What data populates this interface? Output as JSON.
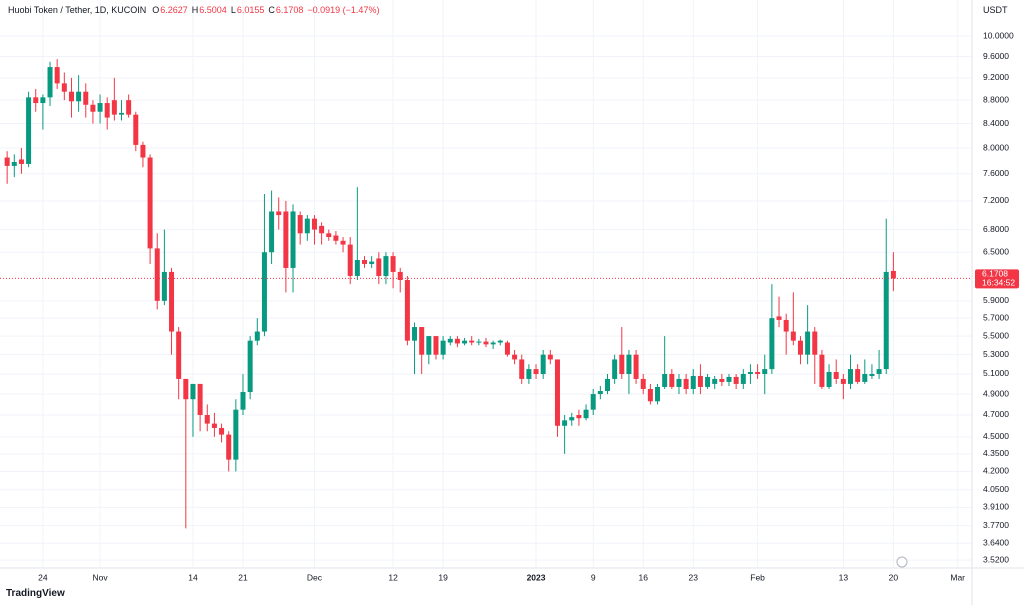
{
  "header": {
    "title": "Huobi Token / Tether, 1D, KUCOIN",
    "open_label": "O",
    "high_label": "H",
    "low_label": "L",
    "close_label": "C",
    "change": "−0.0919 (−1.47%)",
    "countdown": "16:34:52",
    "brand": "TradingView"
  },
  "chart_data": {
    "type": "candlestick",
    "y_axis_label": "USDT",
    "log_scale": true,
    "grid": true,
    "colors": {
      "up": "#089981",
      "down": "#f23645",
      "grid": "#f0f3fa"
    },
    "xlim": [
      "2022-10-18",
      "2023-03-03"
    ],
    "ylim": [
      3.465,
      10.744
    ],
    "xticks": [
      {
        "value": "2022-10-24",
        "label": "24"
      },
      {
        "value": "2022-11-01",
        "label": "Nov"
      },
      {
        "value": "2022-11-14",
        "label": "14"
      },
      {
        "value": "2022-11-21",
        "label": "21"
      },
      {
        "value": "2022-12-01",
        "label": "Dec"
      },
      {
        "value": "2022-12-12",
        "label": "12"
      },
      {
        "value": "2022-12-19",
        "label": "19"
      },
      {
        "value": "2023-01-01",
        "label": "2023"
      },
      {
        "value": "2023-01-09",
        "label": "9"
      },
      {
        "value": "2023-01-16",
        "label": "16"
      },
      {
        "value": "2023-01-23",
        "label": "23"
      },
      {
        "value": "2023-02-01",
        "label": "Feb"
      },
      {
        "value": "2023-02-13",
        "label": "13"
      },
      {
        "value": "2023-02-20",
        "label": "20"
      },
      {
        "value": "2023-03-01",
        "label": "Mar"
      }
    ],
    "yticks": [
      {
        "value": 10,
        "label": "10.0000"
      },
      {
        "value": 9.6,
        "label": "9.6000"
      },
      {
        "value": 9.2,
        "label": "9.2000"
      },
      {
        "value": 8.8,
        "label": "8.8000"
      },
      {
        "value": 8.4,
        "label": "8.4000"
      },
      {
        "value": 8,
        "label": "8.0000"
      },
      {
        "value": 7.6,
        "label": "7.6000"
      },
      {
        "value": 7.2,
        "label": "7.2000"
      },
      {
        "value": 6.8,
        "label": "6.8000"
      },
      {
        "value": 6.5,
        "label": "6.5000"
      },
      {
        "value": 5.9,
        "label": "5.9000"
      },
      {
        "value": 5.7,
        "label": "5.7000"
      },
      {
        "value": 5.5,
        "label": "5.5000"
      },
      {
        "value": 5.3,
        "label": "5.3000"
      },
      {
        "value": 5.1,
        "label": "5.1000"
      },
      {
        "value": 4.9,
        "label": "4.9000"
      },
      {
        "value": 4.7,
        "label": "4.7000"
      },
      {
        "value": 4.5,
        "label": "4.5000"
      },
      {
        "value": 4.35,
        "label": "4.3500"
      },
      {
        "value": 4.2,
        "label": "4.2000"
      },
      {
        "value": 4.05,
        "label": "4.0500"
      },
      {
        "value": 3.91,
        "label": "3.9100"
      },
      {
        "value": 3.77,
        "label": "3.7700"
      },
      {
        "value": 3.64,
        "label": "3.6400"
      },
      {
        "value": 3.52,
        "label": "3.5200"
      }
    ],
    "x": [
      "2022-10-19",
      "2022-10-20",
      "2022-10-21",
      "2022-10-22",
      "2022-10-23",
      "2022-10-24",
      "2022-10-25",
      "2022-10-26",
      "2022-10-27",
      "2022-10-28",
      "2022-10-29",
      "2022-10-30",
      "2022-10-31",
      "2022-11-01",
      "2022-11-02",
      "2022-11-03",
      "2022-11-04",
      "2022-11-05",
      "2022-11-06",
      "2022-11-07",
      "2022-11-08",
      "2022-11-09",
      "2022-11-10",
      "2022-11-11",
      "2022-11-12",
      "2022-11-13",
      "2022-11-14",
      "2022-11-15",
      "2022-11-16",
      "2022-11-17",
      "2022-11-18",
      "2022-11-19",
      "2022-11-20",
      "2022-11-21",
      "2022-11-22",
      "2022-11-23",
      "2022-11-24",
      "2022-11-25",
      "2022-11-26",
      "2022-11-27",
      "2022-11-28",
      "2022-11-29",
      "2022-11-30",
      "2022-12-01",
      "2022-12-02",
      "2022-12-03",
      "2022-12-04",
      "2022-12-05",
      "2022-12-06",
      "2022-12-07",
      "2022-12-08",
      "2022-12-09",
      "2022-12-10",
      "2022-12-11",
      "2022-12-12",
      "2022-12-13",
      "2022-12-14",
      "2022-12-15",
      "2022-12-16",
      "2022-12-17",
      "2022-12-18",
      "2022-12-19",
      "2022-12-20",
      "2022-12-21",
      "2022-12-22",
      "2022-12-23",
      "2022-12-24",
      "2022-12-25",
      "2022-12-26",
      "2022-12-27",
      "2022-12-28",
      "2022-12-29",
      "2022-12-30",
      "2022-12-31",
      "2023-01-01",
      "2023-01-02",
      "2023-01-03",
      "2023-01-04",
      "2023-01-05",
      "2023-01-06",
      "2023-01-07",
      "2023-01-08",
      "2023-01-09",
      "2023-01-10",
      "2023-01-11",
      "2023-01-12",
      "2023-01-13",
      "2023-01-14",
      "2023-01-15",
      "2023-01-16",
      "2023-01-17",
      "2023-01-18",
      "2023-01-19",
      "2023-01-20",
      "2023-01-21",
      "2023-01-22",
      "2023-01-23",
      "2023-01-24",
      "2023-01-25",
      "2023-01-26",
      "2023-01-27",
      "2023-01-28",
      "2023-01-29",
      "2023-01-30",
      "2023-01-31",
      "2023-02-01",
      "2023-02-02",
      "2023-02-03",
      "2023-02-04",
      "2023-02-05",
      "2023-02-06",
      "2023-02-07",
      "2023-02-08",
      "2023-02-09",
      "2023-02-10",
      "2023-02-11",
      "2023-02-12",
      "2023-02-13",
      "2023-02-14",
      "2023-02-15",
      "2023-02-16",
      "2023-02-17",
      "2023-02-18",
      "2023-02-19",
      "2023-02-20"
    ],
    "series": [
      {
        "name": "Huobi Token / Tether",
        "open": [
          7.85,
          7.72,
          7.82,
          7.75,
          8.85,
          8.75,
          8.85,
          9.4,
          9.1,
          8.95,
          8.78,
          8.95,
          8.72,
          8.6,
          8.75,
          8.8,
          8.55,
          8.8,
          8.55,
          8.05,
          7.85,
          6.55,
          5.9,
          6.25,
          5.55,
          5.05,
          4.85,
          5.0,
          4.7,
          4.62,
          4.58,
          4.52,
          4.3,
          4.75,
          4.92,
          5.45,
          5.55,
          6.5,
          7.05,
          7.05,
          6.3,
          7.0,
          6.75,
          6.95,
          6.85,
          6.75,
          6.72,
          6.65,
          6.6,
          6.2,
          6.4,
          6.35,
          6.42,
          6.2,
          6.45,
          6.25,
          6.15,
          5.45,
          5.6,
          5.3,
          5.5,
          5.3,
          5.43,
          5.47,
          5.42,
          5.45,
          5.43,
          5.44,
          5.41,
          5.43,
          5.43,
          5.3,
          5.25,
          5.05,
          5.15,
          5.1,
          5.3,
          5.25,
          4.6,
          4.65,
          4.7,
          4.67,
          4.75,
          4.9,
          4.93,
          5.05,
          5.3,
          5.1,
          5.3,
          5.05,
          4.95,
          4.83,
          4.97,
          5.1,
          4.97,
          5.05,
          4.95,
          5.08,
          4.97,
          5.0,
          5.05,
          5.02,
          5.07,
          5.0,
          5.1,
          5.12,
          5.1,
          5.15,
          5.72,
          5.68,
          5.55,
          5.45,
          5.3,
          5.55,
          5.3,
          4.97,
          5.12,
          5.05,
          5.0,
          5.15,
          5.02,
          5.08,
          5.1,
          5.15,
          6.2627
        ],
        "high": [
          7.95,
          7.9,
          8.0,
          8.95,
          9.0,
          8.9,
          9.5,
          9.55,
          9.3,
          9.2,
          9.25,
          9.1,
          8.8,
          8.9,
          8.85,
          9.2,
          8.8,
          8.9,
          8.6,
          8.1,
          7.9,
          6.75,
          6.8,
          6.3,
          5.6,
          5.05,
          5.0,
          5.0,
          4.8,
          4.72,
          4.62,
          4.55,
          4.85,
          5.1,
          5.5,
          5.7,
          7.3,
          7.35,
          7.25,
          7.2,
          7.15,
          7.05,
          7.0,
          7.0,
          6.9,
          6.8,
          6.78,
          6.7,
          6.7,
          7.4,
          6.45,
          6.45,
          6.5,
          6.5,
          6.5,
          6.3,
          6.2,
          5.65,
          5.6,
          5.5,
          5.5,
          5.5,
          5.5,
          5.5,
          5.48,
          5.5,
          5.47,
          5.48,
          5.45,
          5.46,
          5.45,
          5.35,
          5.3,
          5.2,
          5.2,
          5.35,
          5.35,
          5.25,
          4.7,
          4.72,
          4.75,
          4.8,
          4.95,
          4.98,
          5.1,
          5.3,
          5.6,
          5.35,
          5.35,
          5.1,
          5.0,
          5.0,
          5.5,
          5.15,
          5.1,
          5.1,
          5.15,
          5.2,
          5.1,
          5.08,
          5.1,
          5.1,
          5.1,
          5.15,
          5.2,
          5.2,
          5.3,
          6.1,
          5.95,
          5.75,
          6.0,
          5.5,
          5.85,
          5.6,
          5.35,
          5.2,
          5.25,
          5.1,
          5.3,
          5.2,
          5.25,
          5.2,
          5.35,
          6.95,
          6.5004
        ],
        "low": [
          7.45,
          7.55,
          7.6,
          7.7,
          8.6,
          8.3,
          8.7,
          9.0,
          8.8,
          8.5,
          8.6,
          8.5,
          8.4,
          8.4,
          8.3,
          8.45,
          8.45,
          8.5,
          7.95,
          7.7,
          6.35,
          5.8,
          5.85,
          5.3,
          4.85,
          3.75,
          4.5,
          4.55,
          4.55,
          4.5,
          4.45,
          4.2,
          4.2,
          4.7,
          4.85,
          5.4,
          5.5,
          6.35,
          6.8,
          6.0,
          6.0,
          6.6,
          6.65,
          6.6,
          6.6,
          6.65,
          6.6,
          6.5,
          6.1,
          6.15,
          6.3,
          6.3,
          6.1,
          6.1,
          6.05,
          6.0,
          5.4,
          5.1,
          5.1,
          5.2,
          5.25,
          5.25,
          5.4,
          5.38,
          5.4,
          5.4,
          5.4,
          5.38,
          5.36,
          5.4,
          5.28,
          5.2,
          5.0,
          5.0,
          5.05,
          5.05,
          5.2,
          4.5,
          4.35,
          4.6,
          4.6,
          4.65,
          4.7,
          4.85,
          4.9,
          5.0,
          5.05,
          4.9,
          5.0,
          4.9,
          4.8,
          4.8,
          4.95,
          4.95,
          4.9,
          4.9,
          4.9,
          4.9,
          4.95,
          4.95,
          4.98,
          4.98,
          4.95,
          4.95,
          5.0,
          5.05,
          4.9,
          5.1,
          5.6,
          5.3,
          5.4,
          5.2,
          5.2,
          5.0,
          4.95,
          4.95,
          5.0,
          4.85,
          4.95,
          5.0,
          5.0,
          5.05,
          5.05,
          5.1,
          6.0155
        ],
        "close": [
          7.72,
          7.78,
          7.75,
          8.85,
          8.75,
          8.85,
          9.4,
          9.1,
          8.95,
          8.78,
          8.95,
          8.72,
          8.6,
          8.75,
          8.5,
          8.55,
          8.58,
          8.55,
          8.05,
          7.85,
          6.55,
          5.9,
          6.25,
          5.55,
          5.05,
          4.85,
          5.0,
          4.7,
          4.62,
          4.58,
          4.52,
          4.3,
          4.75,
          4.92,
          5.45,
          5.55,
          6.5,
          7.05,
          7.0,
          6.3,
          7.05,
          6.75,
          6.95,
          6.8,
          6.75,
          6.7,
          6.65,
          6.6,
          6.2,
          6.4,
          6.35,
          6.38,
          6.2,
          6.45,
          6.25,
          6.15,
          5.45,
          5.6,
          5.3,
          5.5,
          5.3,
          5.45,
          5.47,
          5.42,
          5.45,
          5.43,
          5.44,
          5.41,
          5.43,
          5.45,
          5.3,
          5.25,
          5.05,
          5.15,
          5.1,
          5.3,
          5.25,
          4.6,
          4.65,
          4.68,
          4.67,
          4.75,
          4.9,
          4.93,
          5.05,
          5.25,
          5.1,
          5.3,
          5.05,
          4.95,
          4.83,
          4.97,
          5.1,
          4.97,
          5.05,
          4.95,
          5.08,
          4.97,
          5.07,
          5.05,
          5.02,
          5.07,
          5.0,
          5.1,
          5.12,
          5.1,
          5.15,
          5.7,
          5.68,
          5.55,
          5.45,
          5.3,
          5.55,
          5.3,
          4.97,
          5.12,
          5.05,
          5.0,
          5.15,
          5.02,
          5.1,
          5.1,
          5.15,
          6.25,
          6.1708
        ]
      }
    ]
  }
}
